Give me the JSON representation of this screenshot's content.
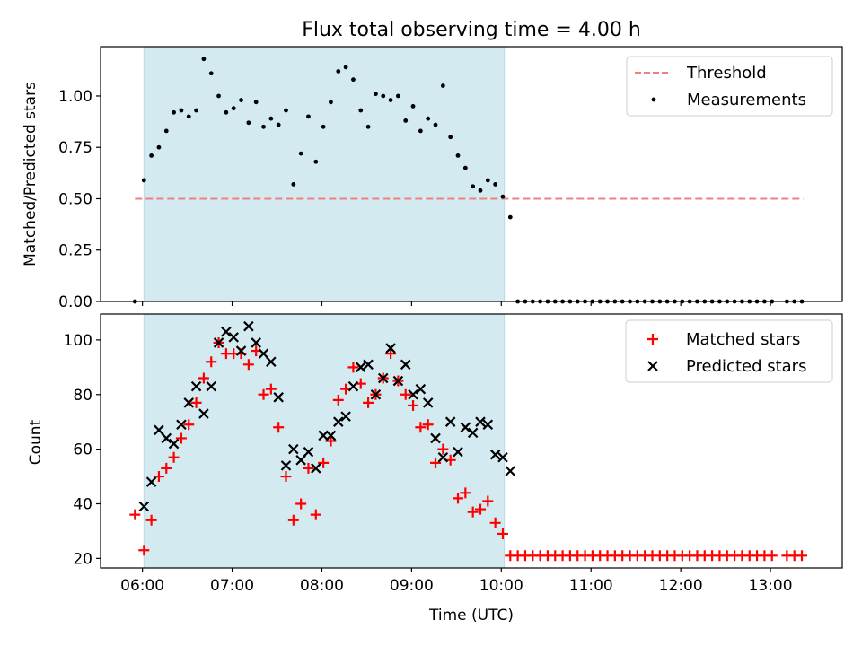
{
  "chart_data": [
    {
      "type": "scatter",
      "title": "Flux total observing time = 4.00 h",
      "ylabel": "Matched/Predicted stars",
      "xlabel": "",
      "x_range": [
        "05:32",
        "13:48"
      ],
      "ylim": [
        0,
        1.24
      ],
      "yticks": [
        "0.00",
        "0.25",
        "0.50",
        "0.75",
        "1.00"
      ],
      "shaded_interval": [
        "06:01",
        "10:02"
      ],
      "shade_color": "#d4eaf1",
      "legend_position": "upper right",
      "threshold": {
        "name": "Threshold",
        "value": 0.5,
        "x_range": [
          "05:55",
          "13:22"
        ],
        "color": "#f08080"
      },
      "series": [
        {
          "name": "Measurements",
          "marker": "dot",
          "color": "#000000",
          "points": [
            [
              "05:55",
              0.0
            ],
            [
              "06:01",
              0.59
            ],
            [
              "06:06",
              0.71
            ],
            [
              "06:11",
              0.75
            ],
            [
              "06:16",
              0.83
            ],
            [
              "06:21",
              0.92
            ],
            [
              "06:26",
              0.93
            ],
            [
              "06:31",
              0.9
            ],
            [
              "06:36",
              0.93
            ],
            [
              "06:41",
              1.18
            ],
            [
              "06:46",
              1.11
            ],
            [
              "06:51",
              1.0
            ],
            [
              "06:56",
              0.92
            ],
            [
              "07:01",
              0.94
            ],
            [
              "07:06",
              0.98
            ],
            [
              "07:11",
              0.87
            ],
            [
              "07:16",
              0.97
            ],
            [
              "07:21",
              0.85
            ],
            [
              "07:26",
              0.89
            ],
            [
              "07:31",
              0.86
            ],
            [
              "07:36",
              0.93
            ],
            [
              "07:41",
              0.57
            ],
            [
              "07:46",
              0.72
            ],
            [
              "07:51",
              0.9
            ],
            [
              "07:56",
              0.68
            ],
            [
              "08:01",
              0.85
            ],
            [
              "08:06",
              0.97
            ],
            [
              "08:11",
              1.12
            ],
            [
              "08:16",
              1.14
            ],
            [
              "08:21",
              1.08
            ],
            [
              "08:26",
              0.93
            ],
            [
              "08:31",
              0.85
            ],
            [
              "08:36",
              1.01
            ],
            [
              "08:41",
              1.0
            ],
            [
              "08:46",
              0.98
            ],
            [
              "08:51",
              1.0
            ],
            [
              "08:56",
              0.88
            ],
            [
              "09:01",
              0.95
            ],
            [
              "09:06",
              0.83
            ],
            [
              "09:11",
              0.89
            ],
            [
              "09:16",
              0.86
            ],
            [
              "09:21",
              1.05
            ],
            [
              "09:26",
              0.8
            ],
            [
              "09:31",
              0.71
            ],
            [
              "09:36",
              0.65
            ],
            [
              "09:41",
              0.56
            ],
            [
              "09:46",
              0.54
            ],
            [
              "09:51",
              0.59
            ],
            [
              "09:56",
              0.57
            ],
            [
              "10:01",
              0.51
            ],
            [
              "10:06",
              0.41
            ],
            [
              "10:11",
              0.0
            ],
            [
              "10:16",
              0.0
            ],
            [
              "10:21",
              0.0
            ],
            [
              "10:26",
              0.0
            ],
            [
              "10:31",
              0.0
            ],
            [
              "10:36",
              0.0
            ],
            [
              "10:41",
              0.0
            ],
            [
              "10:46",
              0.0
            ],
            [
              "10:51",
              0.0
            ],
            [
              "10:56",
              0.0
            ],
            [
              "11:01",
              0.0
            ],
            [
              "11:06",
              0.0
            ],
            [
              "11:11",
              0.0
            ],
            [
              "11:16",
              0.0
            ],
            [
              "11:21",
              0.0
            ],
            [
              "11:26",
              0.0
            ],
            [
              "11:31",
              0.0
            ],
            [
              "11:36",
              0.0
            ],
            [
              "11:41",
              0.0
            ],
            [
              "11:46",
              0.0
            ],
            [
              "11:51",
              0.0
            ],
            [
              "11:56",
              0.0
            ],
            [
              "12:01",
              0.0
            ],
            [
              "12:06",
              0.0
            ],
            [
              "12:11",
              0.0
            ],
            [
              "12:16",
              0.0
            ],
            [
              "12:21",
              0.0
            ],
            [
              "12:26",
              0.0
            ],
            [
              "12:31",
              0.0
            ],
            [
              "12:36",
              0.0
            ],
            [
              "12:41",
              0.0
            ],
            [
              "12:46",
              0.0
            ],
            [
              "12:51",
              0.0
            ],
            [
              "12:56",
              0.0
            ],
            [
              "13:01",
              0.0
            ],
            [
              "13:11",
              0.0
            ],
            [
              "13:16",
              0.0
            ],
            [
              "13:21",
              0.0
            ]
          ]
        }
      ]
    },
    {
      "type": "scatter",
      "title": "",
      "xlabel": "Time (UTC)",
      "ylabel": "Count",
      "x_range": [
        "05:32",
        "13:48"
      ],
      "xticks": [
        "06:00",
        "07:00",
        "08:00",
        "09:00",
        "10:00",
        "11:00",
        "12:00",
        "13:00"
      ],
      "ylim": [
        16.5,
        109.5
      ],
      "yticks": [
        "20",
        "40",
        "60",
        "80",
        "100"
      ],
      "shaded_interval": [
        "06:01",
        "10:02"
      ],
      "shade_color": "#d4eaf1",
      "legend_position": "upper right",
      "series": [
        {
          "name": "Matched stars",
          "marker": "plus",
          "color": "#ff0000",
          "points": [
            [
              "05:55",
              36
            ],
            [
              "06:01",
              23
            ],
            [
              "06:06",
              34
            ],
            [
              "06:11",
              50
            ],
            [
              "06:16",
              53
            ],
            [
              "06:21",
              57
            ],
            [
              "06:26",
              64
            ],
            [
              "06:31",
              69
            ],
            [
              "06:36",
              77
            ],
            [
              "06:41",
              86
            ],
            [
              "06:46",
              92
            ],
            [
              "06:51",
              99
            ],
            [
              "06:56",
              95
            ],
            [
              "07:01",
              95
            ],
            [
              "07:06",
              95
            ],
            [
              "07:11",
              91
            ],
            [
              "07:16",
              96
            ],
            [
              "07:21",
              80
            ],
            [
              "07:26",
              82
            ],
            [
              "07:31",
              68
            ],
            [
              "07:36",
              50
            ],
            [
              "07:41",
              34
            ],
            [
              "07:46",
              40
            ],
            [
              "07:51",
              53
            ],
            [
              "07:56",
              36
            ],
            [
              "08:01",
              55
            ],
            [
              "08:06",
              63
            ],
            [
              "08:11",
              78
            ],
            [
              "08:16",
              82
            ],
            [
              "08:21",
              90
            ],
            [
              "08:26",
              84
            ],
            [
              "08:31",
              77
            ],
            [
              "08:36",
              80
            ],
            [
              "08:41",
              86
            ],
            [
              "08:46",
              95
            ],
            [
              "08:51",
              85
            ],
            [
              "08:56",
              80
            ],
            [
              "09:01",
              76
            ],
            [
              "09:06",
              68
            ],
            [
              "09:11",
              69
            ],
            [
              "09:16",
              55
            ],
            [
              "09:21",
              60
            ],
            [
              "09:26",
              56
            ],
            [
              "09:31",
              42
            ],
            [
              "09:36",
              44
            ],
            [
              "09:41",
              37
            ],
            [
              "09:46",
              38
            ],
            [
              "09:51",
              41
            ],
            [
              "09:56",
              33
            ],
            [
              "10:01",
              29
            ],
            [
              "10:06",
              21
            ],
            [
              "10:11",
              21
            ],
            [
              "10:16",
              21
            ],
            [
              "10:21",
              21
            ],
            [
              "10:26",
              21
            ],
            [
              "10:31",
              21
            ],
            [
              "10:36",
              21
            ],
            [
              "10:41",
              21
            ],
            [
              "10:46",
              21
            ],
            [
              "10:51",
              21
            ],
            [
              "10:56",
              21
            ],
            [
              "11:01",
              21
            ],
            [
              "11:06",
              21
            ],
            [
              "11:11",
              21
            ],
            [
              "11:16",
              21
            ],
            [
              "11:21",
              21
            ],
            [
              "11:26",
              21
            ],
            [
              "11:31",
              21
            ],
            [
              "11:36",
              21
            ],
            [
              "11:41",
              21
            ],
            [
              "11:46",
              21
            ],
            [
              "11:51",
              21
            ],
            [
              "11:56",
              21
            ],
            [
              "12:01",
              21
            ],
            [
              "12:06",
              21
            ],
            [
              "12:11",
              21
            ],
            [
              "12:16",
              21
            ],
            [
              "12:21",
              21
            ],
            [
              "12:26",
              21
            ],
            [
              "12:31",
              21
            ],
            [
              "12:36",
              21
            ],
            [
              "12:41",
              21
            ],
            [
              "12:46",
              21
            ],
            [
              "12:51",
              21
            ],
            [
              "12:56",
              21
            ],
            [
              "13:01",
              21
            ],
            [
              "13:11",
              21
            ],
            [
              "13:16",
              21
            ],
            [
              "13:21",
              21
            ]
          ]
        },
        {
          "name": "Predicted stars",
          "marker": "x",
          "color": "#000000",
          "points": [
            [
              "06:01",
              39
            ],
            [
              "06:06",
              48
            ],
            [
              "06:11",
              67
            ],
            [
              "06:16",
              64
            ],
            [
              "06:21",
              62
            ],
            [
              "06:26",
              69
            ],
            [
              "06:31",
              77
            ],
            [
              "06:36",
              83
            ],
            [
              "06:41",
              73
            ],
            [
              "06:46",
              83
            ],
            [
              "06:51",
              99
            ],
            [
              "06:56",
              103
            ],
            [
              "07:01",
              101
            ],
            [
              "07:06",
              96
            ],
            [
              "07:11",
              105
            ],
            [
              "07:16",
              99
            ],
            [
              "07:21",
              95
            ],
            [
              "07:26",
              92
            ],
            [
              "07:31",
              79
            ],
            [
              "07:36",
              54
            ],
            [
              "07:41",
              60
            ],
            [
              "07:46",
              56
            ],
            [
              "07:51",
              59
            ],
            [
              "07:56",
              53
            ],
            [
              "08:01",
              65
            ],
            [
              "08:06",
              65
            ],
            [
              "08:11",
              70
            ],
            [
              "08:16",
              72
            ],
            [
              "08:21",
              83
            ],
            [
              "08:26",
              90
            ],
            [
              "08:31",
              91
            ],
            [
              "08:36",
              80
            ],
            [
              "08:41",
              86
            ],
            [
              "08:46",
              97
            ],
            [
              "08:51",
              85
            ],
            [
              "08:56",
              91
            ],
            [
              "09:01",
              80
            ],
            [
              "09:06",
              82
            ],
            [
              "09:11",
              77
            ],
            [
              "09:16",
              64
            ],
            [
              "09:21",
              57
            ],
            [
              "09:26",
              70
            ],
            [
              "09:31",
              59
            ],
            [
              "09:36",
              68
            ],
            [
              "09:41",
              66
            ],
            [
              "09:46",
              70
            ],
            [
              "09:51",
              69
            ],
            [
              "09:56",
              58
            ],
            [
              "10:01",
              57
            ],
            [
              "10:06",
              52
            ]
          ]
        }
      ]
    }
  ]
}
